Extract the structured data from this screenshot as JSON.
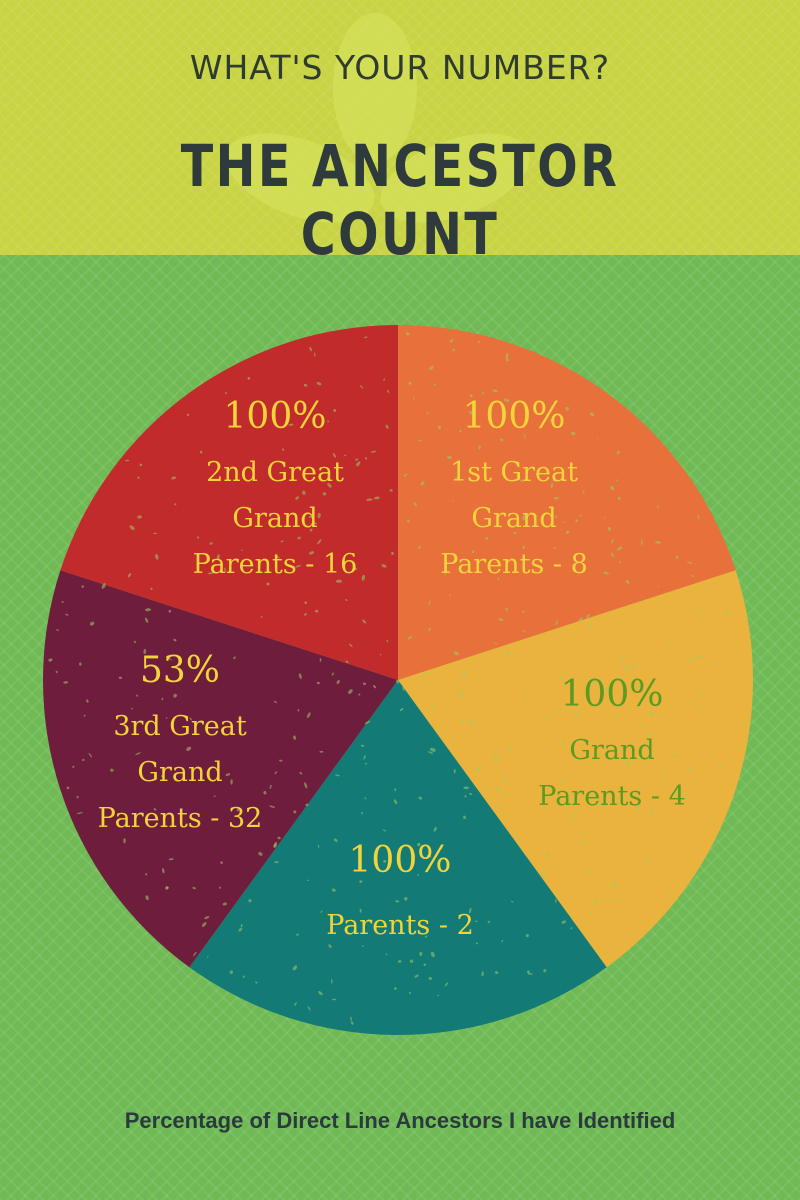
{
  "header": {
    "kicker": "WHAT'S YOUR NUMBER?",
    "title": "THE ANCESTOR COUNT"
  },
  "caption": "Percentage of Direct Line Ancestors I have Identified",
  "colors": {
    "header_bg": "#c8d443",
    "body_bg": "#6fba55"
  },
  "chart_data": {
    "type": "pie",
    "slices": [
      {
        "percent": "100%",
        "lines": [
          "1st Great",
          "Grand",
          "Parents - 8"
        ],
        "value": 20,
        "color": "#e8703a",
        "text_color": "#f2d43a"
      },
      {
        "percent": "100%",
        "lines": [
          "Grand",
          "Parents - 4"
        ],
        "value": 20,
        "color": "#e9b33e",
        "text_color": "#5e9a21"
      },
      {
        "percent": "100%",
        "lines": [
          "Parents - 2"
        ],
        "value": 20,
        "color": "#137a76",
        "text_color": "#f2d43a"
      },
      {
        "percent": "53%",
        "lines": [
          "3rd Great",
          "Grand",
          "Parents - 32"
        ],
        "value": 20,
        "color": "#6f1d3d",
        "text_color": "#f2d43a"
      },
      {
        "percent": "100%",
        "lines": [
          "2nd Great",
          "Grand",
          "Parents - 16"
        ],
        "value": 20,
        "color": "#c22b2b",
        "text_color": "#f2d43a"
      }
    ]
  }
}
